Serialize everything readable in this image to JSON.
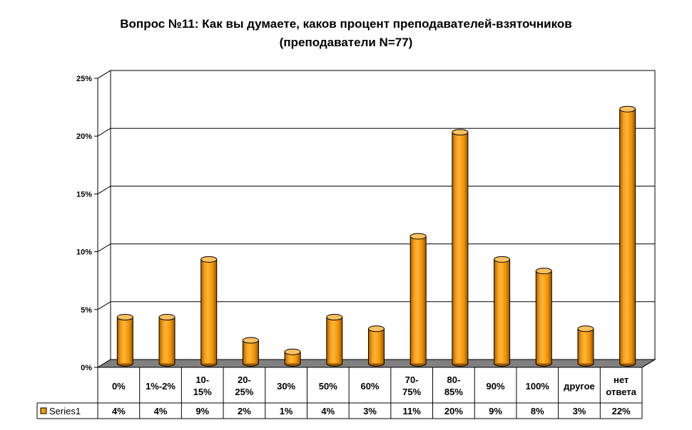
{
  "title": {
    "line1": "Вопрос №11: Как вы думаете, каков процент преподавателей-взяточников",
    "line2": "(преподаватели N=77)"
  },
  "colors": {
    "bar_front": "#f39a00",
    "bar_top": "#ffc060",
    "floor": "#808080"
  },
  "chart_data": {
    "type": "bar",
    "title": "Вопрос №11: Как вы думаете, каков процент преподавателей-взяточников (преподаватели N=77)",
    "categories": [
      [
        "0%"
      ],
      [
        "1%-2%"
      ],
      [
        "10-",
        "15%"
      ],
      [
        "20-",
        "25%"
      ],
      [
        "30%"
      ],
      [
        "50%"
      ],
      [
        "60%"
      ],
      [
        "70-",
        "75%"
      ],
      [
        "80-",
        "85%"
      ],
      [
        "90%"
      ],
      [
        "100%"
      ],
      [
        "другое"
      ],
      [
        "нет",
        "ответа"
      ]
    ],
    "series": [
      {
        "name": "Series1",
        "values": [
          4,
          4,
          9,
          2,
          1,
          4,
          3,
          11,
          20,
          9,
          8,
          3,
          22
        ],
        "labels": [
          "4%",
          "4%",
          "9%",
          "2%",
          "1%",
          "4%",
          "3%",
          "11%",
          "20%",
          "9%",
          "8%",
          "3%",
          "22%"
        ]
      }
    ],
    "ylim": [
      0,
      25
    ],
    "yticks": [
      "0%",
      "5%",
      "10%",
      "15%",
      "20%",
      "25%"
    ],
    "grid": true,
    "legend": "data-table"
  }
}
